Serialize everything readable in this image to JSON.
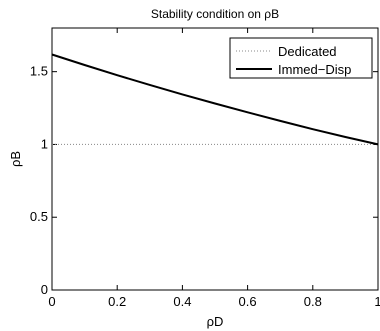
{
  "chart_data": {
    "type": "line",
    "title": "Stability condition on ρB",
    "xlabel": "ρD",
    "ylabel": "ρB",
    "xlim": [
      0,
      1
    ],
    "ylim": [
      0,
      1.8
    ],
    "x_ticks": [
      0,
      0.2,
      0.4,
      0.6,
      0.8,
      1
    ],
    "x_tick_labels": [
      "0",
      "0.2",
      "0.4",
      "0.6",
      "0.8",
      "1"
    ],
    "y_ticks": [
      0,
      0.5,
      1,
      1.5
    ],
    "y_tick_labels": [
      "0",
      "0.5",
      "1",
      "1.5"
    ],
    "grid": false,
    "legend_position": "top-right",
    "series": [
      {
        "name": "Dedicated",
        "style": "dotted",
        "color": "#888888",
        "x": [
          0,
          0.2,
          0.4,
          0.6,
          0.8,
          1
        ],
        "y": [
          1,
          1,
          1,
          1,
          1,
          1
        ]
      },
      {
        "name": "Immed−Disp",
        "style": "solid",
        "color": "#000000",
        "x": [
          0,
          0.1,
          0.2,
          0.3,
          0.4,
          0.5,
          0.6,
          0.7,
          0.8,
          0.9,
          1
        ],
        "y": [
          1.618,
          1.546,
          1.476,
          1.409,
          1.344,
          1.281,
          1.221,
          1.162,
          1.105,
          1.051,
          1.0
        ]
      }
    ]
  }
}
